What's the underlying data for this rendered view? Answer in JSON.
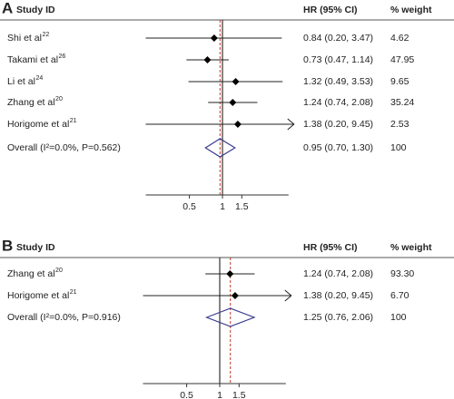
{
  "chart_data": [
    {
      "type": "forest",
      "panel": "A",
      "headers": [
        "Study ID",
        "HR (95% CI)",
        "% weight"
      ],
      "log_scale": true,
      "xlim": [
        0.2,
        4
      ],
      "xticks": [
        0.5,
        1,
        1.5
      ],
      "reference_line": 1,
      "studies": [
        "Shi et al",
        "Takami et al",
        "Li et al",
        "Zhang et al",
        "Horigome et al"
      ],
      "refs": [
        "22",
        "26",
        "24",
        "20",
        "21"
      ],
      "values": [
        0.84,
        0.73,
        1.32,
        1.24,
        1.38
      ],
      "ci_low": [
        0.2,
        0.47,
        0.49,
        0.74,
        0.2
      ],
      "ci_high": [
        3.47,
        1.14,
        3.53,
        2.08,
        9.45
      ],
      "value_labels": [
        "0.84 (0.20, 3.47)",
        "0.73 (0.47, 1.14)",
        "1.32 (0.49, 3.53)",
        "1.24 (0.74, 2.08)",
        "1.38 (0.20, 9.45)"
      ],
      "weights": [
        4.62,
        47.95,
        9.65,
        35.24,
        2.53
      ],
      "weight_labels": [
        "4.62",
        "47.95",
        "9.65",
        "35.24",
        "2.53"
      ],
      "overall": {
        "label": "Overall (I²=0.0%, P=0.562)",
        "value": 0.95,
        "ci_low": 0.7,
        "ci_high": 1.3,
        "value_label": "0.95 (0.70, 1.30)",
        "weight": 100
      },
      "marker_color": "#000000",
      "overall_color": "#3b3b8f",
      "overall_line_color": "#c0392b"
    },
    {
      "type": "forest",
      "panel": "B",
      "headers": [
        "Study ID",
        "HR (95% CI)",
        "% weight"
      ],
      "log_scale": true,
      "xlim": [
        0.2,
        4
      ],
      "xticks": [
        0.5,
        1,
        1.5
      ],
      "reference_line": 1,
      "studies": [
        "Zhang et al",
        "Horigome et al"
      ],
      "refs": [
        "20",
        "21"
      ],
      "values": [
        1.24,
        1.38
      ],
      "ci_low": [
        0.74,
        0.2
      ],
      "ci_high": [
        2.08,
        9.45
      ],
      "value_labels": [
        "1.24 (0.74, 2.08)",
        "1.38 (0.20, 9.45)"
      ],
      "weights": [
        93.3,
        6.7
      ],
      "weight_labels": [
        "93.30",
        "6.70"
      ],
      "overall": {
        "label": "Overall (I²=0.0%, P=0.916)",
        "value": 1.25,
        "ci_low": 0.76,
        "ci_high": 2.06,
        "value_label": "1.25 (0.76, 2.06)",
        "weight": 100
      },
      "marker_color": "#000000",
      "overall_color": "#3b3b8f",
      "overall_line_color": "#c0392b"
    }
  ]
}
